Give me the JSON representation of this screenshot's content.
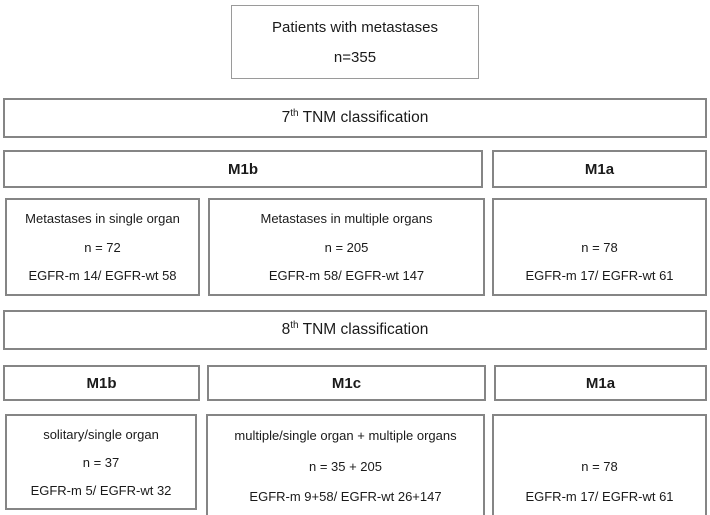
{
  "root_box": {
    "title": "Patients with metastases",
    "n": "n=355"
  },
  "sections": {
    "seventh": {
      "header": {
        "num": "7",
        "sup": "th",
        "rest": " TNM classification"
      },
      "m1b_label": "M1b",
      "m1a_label": "M1a",
      "boxes": {
        "single_organ": {
          "title": "Metastases in single organ",
          "n": "n = 72",
          "egfr": "EGFR-m 14/ EGFR-wt 58"
        },
        "multiple_organs": {
          "title": "Metastases in multiple organs",
          "n": "n = 205",
          "egfr": "EGFR-m 58/ EGFR-wt 147"
        },
        "m1a": {
          "title": "",
          "n": "n = 78",
          "egfr": "EGFR-m 17/ EGFR-wt 61"
        }
      }
    },
    "eighth": {
      "header": {
        "num": "8",
        "sup": "th",
        "rest": " TNM classification"
      },
      "m1b_label": "M1b",
      "m1c_label": "M1c",
      "m1a_label": "M1a",
      "boxes": {
        "m1b": {
          "title": "solitary/single organ",
          "n": "n = 37",
          "egfr": "EGFR-m 5/ EGFR-wt 32"
        },
        "m1c": {
          "title": "multiple/single organ + multiple organs",
          "n": "n = 35 + 205",
          "egfr": "EGFR-m 9+58/ EGFR-wt 26+147"
        },
        "m1a": {
          "title": "",
          "n": "n = 78",
          "egfr": "EGFR-m 17/ EGFR-wt 61"
        }
      }
    }
  },
  "colors": {
    "border": "#858585",
    "border_light": "#9a9a9a",
    "text": "#1a1a1a",
    "background": "#ffffff"
  }
}
